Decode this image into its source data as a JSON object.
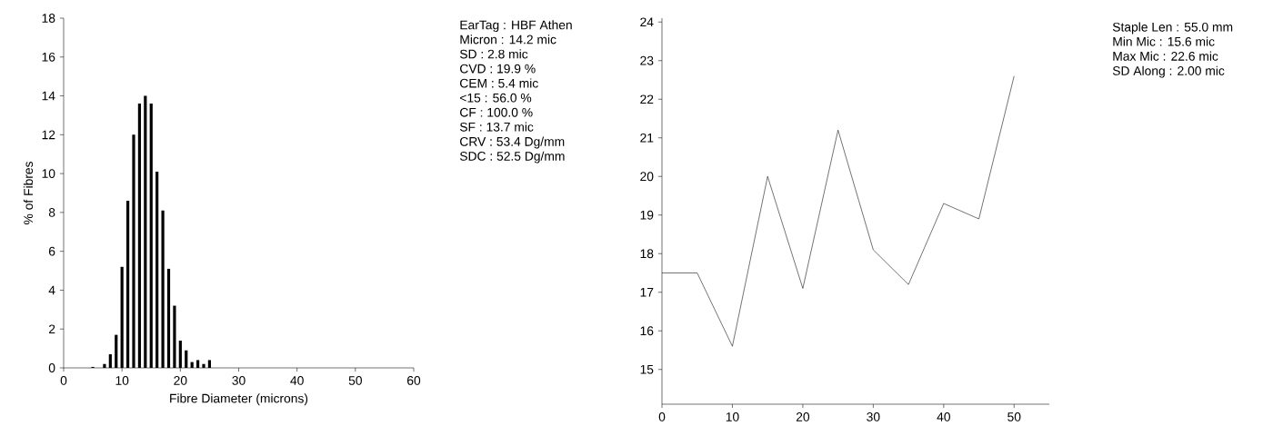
{
  "chart_data": [
    {
      "type": "bar",
      "x": [
        5,
        7,
        8,
        9,
        10,
        11,
        12,
        13,
        14,
        15,
        16,
        17,
        18,
        19,
        20,
        21,
        22,
        23,
        24,
        25
      ],
      "values": [
        0.05,
        0.2,
        0.7,
        1.7,
        5.2,
        8.6,
        12.0,
        13.6,
        14.0,
        13.6,
        10.1,
        8.1,
        5.1,
        3.2,
        1.4,
        0.9,
        0.3,
        0.4,
        0.2,
        0.4
      ],
      "color": "#000000",
      "xlim": [
        0,
        60
      ],
      "ylim": [
        0,
        18
      ],
      "xticks": [
        0,
        10,
        20,
        30,
        40,
        50,
        60
      ],
      "yticks": [
        0,
        2,
        4,
        6,
        8,
        10,
        12,
        14,
        16,
        18
      ],
      "xlabel": "Fibre Diameter (microns)",
      "ylabel": "% of Fibres",
      "annotations": [
        "EarTag : HBF Athen",
        "Micron : 14.2 mic",
        "SD : 2.8 mic",
        "CVD : 19.9 %",
        "CEM : 5.4 mic",
        "<15 : 56.0 %",
        "CF : 100.0 %",
        "SF : 13.7 mic",
        "CRV : 53.4 Dg/mm",
        "SDC : 52.5 Dg/mm"
      ]
    },
    {
      "type": "line",
      "x": [
        0,
        5,
        10,
        15,
        20,
        25,
        30,
        35,
        40,
        45,
        50
      ],
      "values": [
        17.5,
        17.5,
        15.6,
        20.0,
        17.1,
        21.2,
        18.1,
        17.2,
        19.3,
        18.9,
        22.6
      ],
      "color": "#000000",
      "xlim": [
        0,
        55
      ],
      "ylim": [
        14.1,
        24.1
      ],
      "xticks": [
        0,
        10,
        20,
        30,
        40,
        50
      ],
      "yticks": [
        15,
        16,
        17,
        18,
        19,
        20,
        21,
        22,
        23,
        24
      ],
      "line_style": "solid",
      "annotations": [
        "Staple Len : 55.0 mm",
        "Min Mic : 15.6 mic",
        "Max Mic : 22.6 mic",
        "SD Along : 2.00 mic"
      ]
    }
  ]
}
